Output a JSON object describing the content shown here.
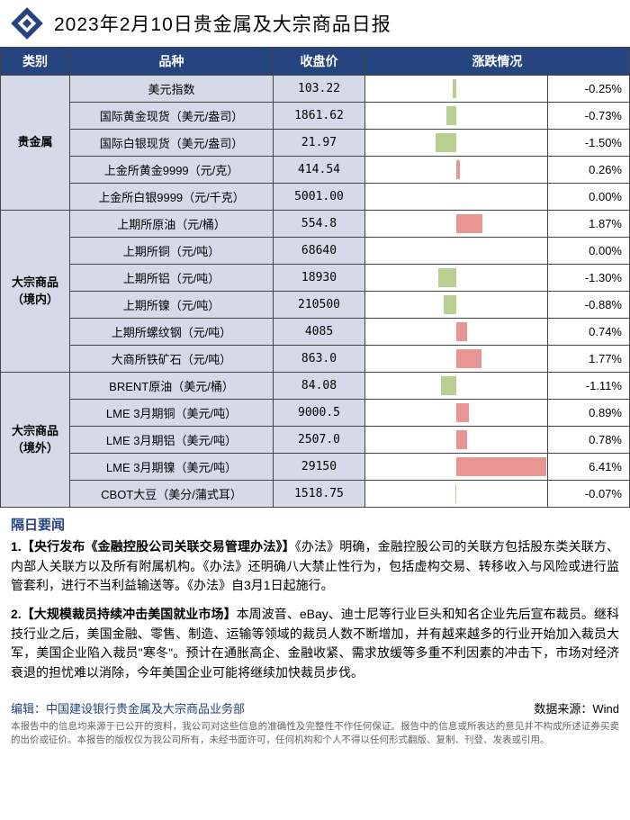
{
  "title": "2023年2月10日贵金属及大宗商品日报",
  "logo_colors": {
    "primary": "#254480",
    "accent": "#d6dae8"
  },
  "table": {
    "header_bg": "#254480",
    "header_fg": "#ffffff",
    "cell_bg": "#d6dae8",
    "neg_bar_color": "#b9d090",
    "pos_bar_color": "#e99593",
    "max_abs_pct": 6.5,
    "columns": [
      "类别",
      "品种",
      "收盘价",
      "涨跌情况"
    ],
    "groups": [
      {
        "category": "贵金属",
        "rows": [
          {
            "item": "美元指数",
            "price": "103.22",
            "pct": -0.25
          },
          {
            "item": "国际黄金现货（美元/盎司）",
            "price": "1861.62",
            "pct": -0.73
          },
          {
            "item": "国际白银现货（美元/盎司）",
            "price": "21.97",
            "pct": -1.5
          },
          {
            "item": "上金所黄金9999（元/克）",
            "price": "414.54",
            "pct": 0.26
          },
          {
            "item": "上金所白银9999（元/千克）",
            "price": "5001.00",
            "pct": 0.0
          }
        ]
      },
      {
        "category": "大宗商品（境内）",
        "rows": [
          {
            "item": "上期所原油（元/桶）",
            "price": "554.8",
            "pct": 1.87
          },
          {
            "item": "上期所铜（元/吨）",
            "price": "68640",
            "pct": 0.0
          },
          {
            "item": "上期所铝（元/吨）",
            "price": "18930",
            "pct": -1.3
          },
          {
            "item": "上期所镍（元/吨）",
            "price": "210500",
            "pct": -0.88
          },
          {
            "item": "上期所螺纹钢（元/吨）",
            "price": "4085",
            "pct": 0.74
          },
          {
            "item": "大商所铁矿石（元/吨）",
            "price": "863.0",
            "pct": 1.77
          }
        ]
      },
      {
        "category": "大宗商品（境外）",
        "rows": [
          {
            "item": "BRENT原油（美元/桶）",
            "price": "84.08",
            "pct": -1.11
          },
          {
            "item": "LME 3月期铜（美元/吨）",
            "price": "9000.5",
            "pct": 0.89
          },
          {
            "item": "LME 3月期铝（美元/吨）",
            "price": "2507.0",
            "pct": 0.78
          },
          {
            "item": "LME 3月期镍（美元/吨）",
            "price": "29150",
            "pct": 6.41
          },
          {
            "item": "CBOT大豆（美分/蒲式耳）",
            "price": "1518.75",
            "pct": -0.07
          }
        ]
      }
    ]
  },
  "news": {
    "heading": "隔日要闻",
    "items": [
      {
        "num": "1.",
        "title": "【央行发布《金融控股公司关联交易管理办法》】",
        "body": "《办法》明确，金融控股公司的关联方包括股东类关联方、内部人关联方以及所有附属机构。《办法》还明确八大禁止性行为，包括虚构交易、转移收入与风险或进行监管套利，进行不当利益输送等。《办法》自3月1日起施行。"
      },
      {
        "num": "2.",
        "title": "【大规模裁员持续冲击美国就业市场】",
        "body": "本周波音、eBay、迪士尼等行业巨头和知名企业先后宣布裁员。继科技行业之后，美国金融、零售、制造、运输等领域的裁员人数不断增加，并有越来越多的行业开始加入裁员大军，美国企业陷入裁员\"寒冬\"。预计在通胀高企、金融收紧、需求放缓等多重不利因素的冲击下，市场对经济衰退的担忧难以消除，今年美国企业可能将继续加快裁员步伐。"
      }
    ]
  },
  "footer": {
    "editor_label": "编辑：",
    "editor": "中国建设银行贵金属及大宗商品业务部",
    "source_label": "数据来源：",
    "source": "Wind",
    "disclaimer": "本报告中的信息均来源于已公开的资料，我公司对这些信息的准确性及完整性不作任何保证。报告中的信息或所表达的意见并不构成所述证券买卖的出价或征价。本报告的版权仅为我公司所有，未经书面许可，任何机构和个人不得以任何形式翻版、复制、刊登、发表或引用。"
  }
}
